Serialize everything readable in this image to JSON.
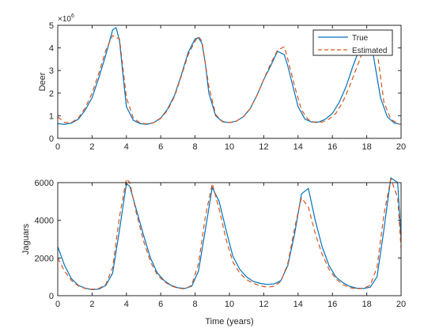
{
  "colors": {
    "true_line": "#0072BD",
    "estimated_line": "#D95319",
    "axis": "#262626",
    "background": "#ffffff"
  },
  "chart_data": [
    {
      "type": "line",
      "ylabel": "Deer",
      "xlabel": "",
      "exponent_label": "×10",
      "exponent_power": "6",
      "xlim": [
        0,
        20
      ],
      "ylim": [
        0,
        5000000
      ],
      "xticks": [
        0,
        2,
        4,
        6,
        8,
        10,
        12,
        14,
        16,
        18,
        20
      ],
      "xtick_labels": [
        "0",
        "2",
        "4",
        "6",
        "8",
        "10",
        "12",
        "14",
        "16",
        "18",
        "20"
      ],
      "yticks": [
        0,
        1000000,
        2000000,
        3000000,
        4000000,
        5000000
      ],
      "ytick_labels": [
        "0",
        "1",
        "2",
        "3",
        "4",
        "5"
      ],
      "grid": false,
      "legend": {
        "position": "top-right",
        "entries": [
          "True",
          "Estimated"
        ]
      },
      "series": [
        {
          "name": "True",
          "style": "solid",
          "color": "#0072BD",
          "x": [
            0,
            0.4,
            0.8,
            1.2,
            1.6,
            2.0,
            2.4,
            2.8,
            3.2,
            3.4,
            3.6,
            3.8,
            4.0,
            4.4,
            4.8,
            5.2,
            5.6,
            6.0,
            6.4,
            6.8,
            7.2,
            7.6,
            8.0,
            8.2,
            8.4,
            8.6,
            8.8,
            9.2,
            9.6,
            10.0,
            10.4,
            10.8,
            11.2,
            11.6,
            12.0,
            12.4,
            12.8,
            13.2,
            13.4,
            13.6,
            14.0,
            14.4,
            14.8,
            15.2,
            15.6,
            16.0,
            16.4,
            16.8,
            17.2,
            17.6,
            18.0,
            18.2,
            18.4,
            18.8,
            19.2,
            19.6,
            20.0
          ],
          "y": [
            650000,
            620000,
            680000,
            850000,
            1250000,
            1800000,
            2700000,
            3700000,
            4800000,
            4900000,
            4300000,
            2800000,
            1400000,
            800000,
            650000,
            620000,
            700000,
            900000,
            1300000,
            1900000,
            2800000,
            3800000,
            4400000,
            4450000,
            4200000,
            3300000,
            2000000,
            1000000,
            730000,
            700000,
            760000,
            950000,
            1300000,
            1900000,
            2600000,
            3200000,
            3850000,
            3700000,
            3200000,
            2600000,
            1400000,
            850000,
            720000,
            720000,
            850000,
            1100000,
            1600000,
            2300000,
            3200000,
            4000000,
            4400000,
            4300000,
            3600000,
            1800000,
            950000,
            680000,
            620000
          ]
        },
        {
          "name": "Estimated",
          "style": "dashed",
          "color": "#D95319",
          "x": [
            0,
            0.4,
            0.8,
            1.2,
            1.6,
            2.0,
            2.4,
            2.8,
            3.2,
            3.6,
            4.0,
            4.4,
            4.8,
            5.2,
            5.6,
            6.0,
            6.4,
            6.8,
            7.2,
            7.6,
            8.0,
            8.2,
            8.4,
            8.8,
            9.2,
            9.6,
            10.0,
            10.4,
            10.8,
            11.2,
            11.6,
            12.0,
            12.4,
            12.8,
            13.2,
            13.4,
            13.8,
            14.2,
            14.6,
            15.0,
            15.4,
            15.8,
            16.2,
            16.6,
            17.0,
            17.4,
            17.8,
            18.2,
            18.6,
            19.0,
            19.4,
            19.8,
            20.0
          ],
          "y": [
            950000,
            700000,
            700000,
            900000,
            1350000,
            2000000,
            2900000,
            3900000,
            4550000,
            4400000,
            1800000,
            900000,
            680000,
            640000,
            700000,
            880000,
            1250000,
            1850000,
            2750000,
            3700000,
            4300000,
            4500000,
            4300000,
            2300000,
            1050000,
            750000,
            700000,
            760000,
            950000,
            1300000,
            1900000,
            2600000,
            3300000,
            3900000,
            4050000,
            3500000,
            2300000,
            1250000,
            820000,
            700000,
            720000,
            850000,
            1100000,
            1600000,
            2300000,
            3100000,
            3900000,
            4500000,
            3900000,
            1600000,
            850000,
            650000,
            620000
          ]
        }
      ]
    },
    {
      "type": "line",
      "ylabel": "Jaguars",
      "xlabel": "Time (years)",
      "xlim": [
        0,
        20
      ],
      "ylim": [
        0,
        6000
      ],
      "xticks": [
        0,
        2,
        4,
        6,
        8,
        10,
        12,
        14,
        16,
        18,
        20
      ],
      "xtick_labels": [
        "0",
        "2",
        "4",
        "6",
        "8",
        "10",
        "12",
        "14",
        "16",
        "18",
        "20"
      ],
      "yticks": [
        0,
        2000,
        4000,
        6000
      ],
      "ytick_labels": [
        "0",
        "2000",
        "4000",
        "6000"
      ],
      "grid": false,
      "series": [
        {
          "name": "True",
          "style": "solid",
          "color": "#0072BD",
          "x": [
            0,
            0.4,
            0.8,
            1.2,
            1.6,
            2.0,
            2.4,
            2.8,
            3.2,
            3.6,
            4.0,
            4.2,
            4.6,
            5.0,
            5.4,
            5.8,
            6.2,
            6.6,
            7.0,
            7.4,
            7.8,
            8.2,
            8.6,
            9.0,
            9.4,
            9.8,
            10.2,
            10.6,
            11.0,
            11.4,
            11.8,
            12.2,
            12.6,
            13.0,
            13.4,
            13.8,
            14.2,
            14.6,
            15.0,
            15.4,
            15.8,
            16.2,
            16.6,
            17.0,
            17.4,
            17.8,
            18.2,
            18.6,
            19.0,
            19.4,
            19.8,
            20.0
          ],
          "y": [
            2600,
            1600,
            900,
            550,
            400,
            320,
            350,
            550,
            1200,
            3500,
            5950,
            5800,
            4500,
            3200,
            2000,
            1200,
            800,
            550,
            420,
            380,
            500,
            1300,
            3500,
            5750,
            5000,
            3500,
            2100,
            1400,
            1000,
            750,
            650,
            600,
            620,
            800,
            1600,
            3300,
            5400,
            5700,
            4000,
            2600,
            1600,
            1000,
            700,
            500,
            400,
            380,
            450,
            1000,
            3500,
            6250,
            6000,
            3000
          ]
        },
        {
          "name": "Estimated",
          "style": "dashed",
          "color": "#D95319",
          "x": [
            0,
            0.4,
            0.8,
            1.2,
            1.6,
            2.0,
            2.4,
            2.8,
            3.2,
            3.6,
            4.0,
            4.2,
            4.6,
            5.0,
            5.4,
            5.8,
            6.2,
            6.6,
            7.0,
            7.4,
            7.8,
            8.2,
            8.6,
            9.0,
            9.4,
            9.8,
            10.2,
            10.6,
            11.0,
            11.4,
            11.8,
            12.2,
            12.6,
            13.0,
            13.4,
            13.8,
            14.2,
            14.6,
            15.0,
            15.4,
            15.8,
            16.2,
            16.6,
            17.0,
            17.4,
            17.8,
            18.2,
            18.6,
            19.0,
            19.4,
            19.8,
            20.0
          ],
          "y": [
            2000,
            1300,
            800,
            520,
            380,
            340,
            380,
            600,
            1500,
            4200,
            6200,
            6000,
            4300,
            2900,
            1800,
            1100,
            750,
            520,
            400,
            360,
            550,
            1700,
            4200,
            5950,
            4600,
            3000,
            1800,
            1200,
            850,
            650,
            520,
            450,
            500,
            750,
            1700,
            3600,
            5200,
            4700,
            3300,
            2200,
            1400,
            900,
            600,
            430,
            370,
            380,
            550,
            1500,
            4300,
            6200,
            5200,
            2500
          ]
        }
      ]
    }
  ]
}
